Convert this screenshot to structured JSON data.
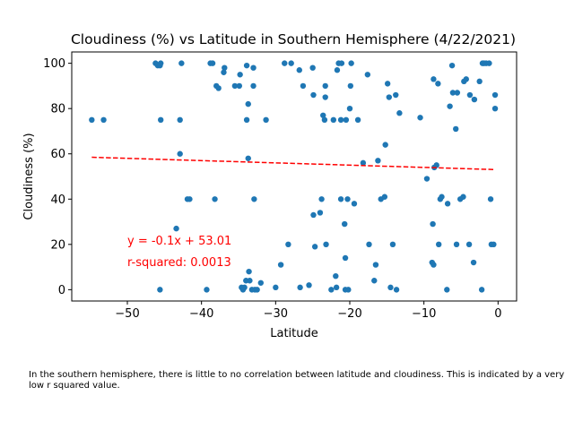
{
  "chart_data": {
    "type": "scatter",
    "title": "Cloudiness (%) vs Latitude in Southern Hemisphere (4/22/2021)",
    "xlabel": "Latitude",
    "ylabel": "Cloudiness (%)",
    "xlim": [
      -57.5,
      2.5
    ],
    "ylim": [
      -5,
      105
    ],
    "xticks": [
      -50,
      -40,
      -30,
      -20,
      -10,
      0
    ],
    "yticks": [
      0,
      20,
      40,
      60,
      80,
      100
    ],
    "grid": false,
    "point_color": "#1f77b4",
    "regression": {
      "slope": -0.1,
      "intercept": 53.01,
      "x_range": [
        -54.8,
        -0.5
      ],
      "color": "#ff0000",
      "equation_label": "y = -0.1x + 53.01",
      "r_squared_label": "r-squared: 0.0013",
      "label_x": -50,
      "label_y_equation": 20,
      "label_y_rsquared": 10.5
    },
    "points": [
      [
        -54.8,
        75
      ],
      [
        -53.2,
        75
      ],
      [
        -46.2,
        100
      ],
      [
        -45.9,
        99
      ],
      [
        -45.6,
        99
      ],
      [
        -45.5,
        100
      ],
      [
        -45.6,
        0
      ],
      [
        -45.5,
        75
      ],
      [
        -43.4,
        27
      ],
      [
        -42.9,
        75
      ],
      [
        -42.9,
        60
      ],
      [
        -42.7,
        100
      ],
      [
        -41.9,
        40
      ],
      [
        -41.6,
        40
      ],
      [
        -39.3,
        0
      ],
      [
        -38.8,
        100
      ],
      [
        -38.5,
        100
      ],
      [
        -38.2,
        40
      ],
      [
        -38.0,
        90
      ],
      [
        -37.7,
        89
      ],
      [
        -37.0,
        96
      ],
      [
        -36.9,
        98
      ],
      [
        -35.5,
        90
      ],
      [
        -34.9,
        90
      ],
      [
        -34.8,
        95
      ],
      [
        -34.6,
        1
      ],
      [
        -34.4,
        0
      ],
      [
        -34.2,
        1
      ],
      [
        -34.0,
        4
      ],
      [
        -33.9,
        99
      ],
      [
        -33.9,
        75
      ],
      [
        -33.7,
        82
      ],
      [
        -33.7,
        58
      ],
      [
        -33.6,
        8
      ],
      [
        -33.5,
        4
      ],
      [
        -33.2,
        0
      ],
      [
        -33.0,
        98
      ],
      [
        -33.0,
        90
      ],
      [
        -32.9,
        40
      ],
      [
        -32.8,
        0
      ],
      [
        -32.5,
        0
      ],
      [
        -32.0,
        3
      ],
      [
        -31.3,
        75
      ],
      [
        -30.0,
        1
      ],
      [
        -29.3,
        11
      ],
      [
        -28.8,
        100
      ],
      [
        -28.3,
        20
      ],
      [
        -27.9,
        100
      ],
      [
        -26.8,
        97
      ],
      [
        -26.7,
        1
      ],
      [
        -26.3,
        90
      ],
      [
        -25.5,
        2
      ],
      [
        -25.0,
        98
      ],
      [
        -24.9,
        86
      ],
      [
        -24.9,
        33
      ],
      [
        -24.7,
        19
      ],
      [
        -24.0,
        34
      ],
      [
        -23.8,
        40
      ],
      [
        -23.6,
        77
      ],
      [
        -23.4,
        75
      ],
      [
        -23.3,
        85
      ],
      [
        -23.3,
        90
      ],
      [
        -23.2,
        20
      ],
      [
        -22.5,
        0
      ],
      [
        -22.2,
        75
      ],
      [
        -21.9,
        6
      ],
      [
        -21.8,
        1
      ],
      [
        -21.7,
        97
      ],
      [
        -21.5,
        100
      ],
      [
        -21.2,
        40
      ],
      [
        -21.1,
        100
      ],
      [
        -21.2,
        75
      ],
      [
        -20.7,
        29
      ],
      [
        -20.6,
        14
      ],
      [
        -20.6,
        0
      ],
      [
        -20.5,
        75
      ],
      [
        -20.3,
        40
      ],
      [
        -20.2,
        0
      ],
      [
        -20.0,
        80
      ],
      [
        -19.9,
        90
      ],
      [
        -19.8,
        100
      ],
      [
        -19.4,
        38
      ],
      [
        -18.9,
        75
      ],
      [
        -18.2,
        56
      ],
      [
        -17.6,
        95
      ],
      [
        -17.4,
        20
      ],
      [
        -16.7,
        4
      ],
      [
        -16.5,
        11
      ],
      [
        -16.2,
        57
      ],
      [
        -15.8,
        40
      ],
      [
        -15.3,
        41
      ],
      [
        -15.2,
        64
      ],
      [
        -14.9,
        91
      ],
      [
        -14.7,
        85
      ],
      [
        -14.5,
        1
      ],
      [
        -14.2,
        20
      ],
      [
        -13.8,
        86
      ],
      [
        -13.7,
        0
      ],
      [
        -13.3,
        78
      ],
      [
        -10.5,
        76
      ],
      [
        -9.6,
        49
      ],
      [
        -8.9,
        12
      ],
      [
        -8.8,
        29
      ],
      [
        -8.7,
        93
      ],
      [
        -8.7,
        11
      ],
      [
        -8.6,
        54
      ],
      [
        -8.3,
        55
      ],
      [
        -8.1,
        91
      ],
      [
        -8.0,
        20
      ],
      [
        -7.8,
        40
      ],
      [
        -7.6,
        41
      ],
      [
        -6.9,
        0
      ],
      [
        -6.8,
        38
      ],
      [
        -6.5,
        81
      ],
      [
        -6.2,
        99
      ],
      [
        -6.1,
        87
      ],
      [
        -5.7,
        71
      ],
      [
        -5.6,
        20
      ],
      [
        -5.5,
        87
      ],
      [
        -5.1,
        40
      ],
      [
        -4.7,
        41
      ],
      [
        -4.6,
        92
      ],
      [
        -4.3,
        93
      ],
      [
        -3.9,
        20
      ],
      [
        -3.8,
        86
      ],
      [
        -3.3,
        12
      ],
      [
        -3.2,
        84
      ],
      [
        -2.5,
        92
      ],
      [
        -2.2,
        0
      ],
      [
        -2.1,
        100
      ],
      [
        -1.9,
        100
      ],
      [
        -1.6,
        100
      ],
      [
        -1.2,
        100
      ],
      [
        -1.0,
        40
      ],
      [
        -0.9,
        20
      ],
      [
        -0.6,
        20
      ],
      [
        -0.4,
        86
      ],
      [
        -0.4,
        80
      ]
    ]
  },
  "caption": "In the southern hemisphere, there is little to no correlation between latitude and cloudiness. This is indicated by a very low r squared value."
}
